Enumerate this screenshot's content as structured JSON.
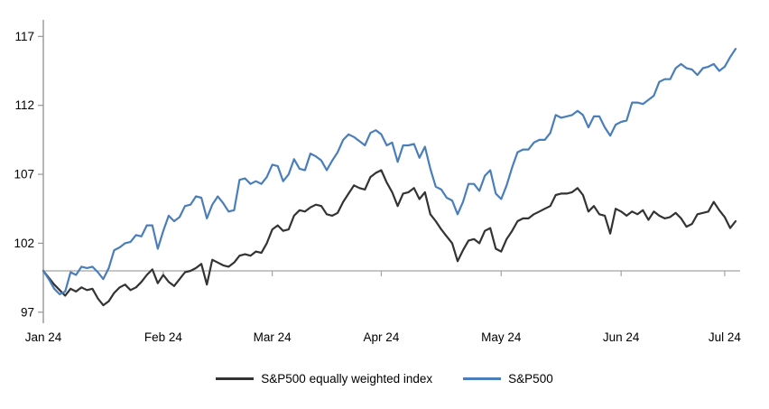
{
  "chart_data": {
    "type": "line",
    "title": "",
    "xlabel": "",
    "ylabel": "",
    "x_tick_labels": [
      "Jan 24",
      "Feb 24",
      "Mar 24",
      "Apr 24",
      "May 24",
      "Jun 24",
      "Jul 24"
    ],
    "x_tick_indices": [
      0,
      22,
      42,
      62,
      84,
      106,
      125
    ],
    "y_ticks": [
      97,
      102,
      107,
      112,
      117
    ],
    "ylim": [
      96.2,
      118.2
    ],
    "baseline_value": 100,
    "grid": "none",
    "legend_position": "bottom",
    "axis_color": "#979797",
    "baseline_color": "#a3a3a3",
    "text_color": "#000000",
    "background_color": "#ffffff",
    "series": [
      {
        "name": "S&P500 equally weighted index",
        "color": "#333333",
        "values": [
          100.0,
          99.5,
          99.0,
          98.6,
          98.2,
          98.7,
          98.5,
          98.8,
          98.6,
          98.7,
          98.0,
          97.5,
          97.8,
          98.4,
          98.8,
          99.0,
          98.6,
          98.8,
          99.2,
          99.7,
          100.1,
          99.1,
          99.7,
          99.2,
          98.9,
          99.4,
          99.9,
          100.0,
          100.2,
          100.5,
          99.0,
          100.8,
          100.6,
          100.4,
          100.3,
          100.6,
          101.1,
          101.2,
          101.1,
          101.4,
          101.3,
          102.0,
          103.0,
          103.3,
          102.9,
          103.0,
          104.0,
          104.4,
          104.3,
          104.6,
          104.8,
          104.7,
          104.1,
          104.0,
          104.2,
          105.0,
          105.6,
          106.2,
          106.0,
          105.9,
          106.8,
          107.1,
          107.3,
          106.4,
          105.7,
          104.7,
          105.6,
          105.7,
          106.0,
          105.2,
          105.7,
          104.1,
          103.6,
          103.0,
          102.5,
          102.0,
          100.7,
          101.5,
          102.2,
          102.3,
          102.0,
          102.9,
          103.1,
          101.6,
          101.4,
          102.3,
          102.9,
          103.6,
          103.8,
          103.8,
          104.1,
          104.3,
          104.5,
          104.7,
          105.5,
          105.6,
          105.6,
          105.7,
          106.0,
          105.5,
          104.3,
          104.7,
          104.1,
          104.0,
          102.7,
          104.5,
          104.3,
          104.0,
          104.3,
          104.1,
          104.4,
          103.7,
          104.3,
          104.0,
          103.8,
          103.9,
          104.2,
          103.8,
          103.2,
          103.4,
          104.1,
          104.2,
          104.3,
          105.0,
          104.4,
          103.9,
          103.1,
          103.6
        ]
      },
      {
        "name": "S&P500",
        "color": "#4a7ebb",
        "values": [
          100.0,
          99.4,
          98.7,
          98.3,
          98.5,
          99.9,
          99.7,
          100.3,
          100.2,
          100.3,
          99.9,
          99.4,
          100.2,
          101.5,
          101.7,
          102.0,
          102.1,
          102.6,
          102.5,
          103.3,
          103.3,
          101.6,
          102.9,
          104.0,
          103.6,
          103.9,
          104.7,
          104.8,
          105.4,
          105.3,
          103.8,
          104.8,
          105.4,
          104.9,
          104.3,
          104.4,
          106.6,
          106.7,
          106.3,
          106.5,
          106.3,
          106.8,
          107.7,
          107.6,
          106.5,
          107.0,
          108.1,
          107.4,
          107.3,
          108.5,
          108.3,
          108.0,
          107.3,
          108.0,
          108.6,
          109.5,
          109.9,
          109.7,
          109.4,
          109.1,
          110.0,
          110.2,
          109.9,
          109.1,
          109.3,
          107.9,
          109.1,
          109.1,
          109.2,
          108.2,
          109.0,
          107.4,
          106.1,
          105.9,
          105.3,
          105.1,
          104.1,
          105.0,
          106.3,
          106.3,
          105.8,
          106.9,
          107.3,
          105.6,
          105.2,
          106.2,
          107.5,
          108.6,
          108.8,
          108.8,
          109.3,
          109.5,
          109.5,
          110.0,
          111.3,
          111.1,
          111.2,
          111.3,
          111.6,
          111.3,
          110.4,
          111.2,
          111.2,
          110.4,
          109.8,
          110.6,
          110.8,
          110.9,
          112.2,
          112.2,
          112.1,
          112.4,
          112.7,
          113.7,
          113.9,
          113.9,
          114.7,
          115.0,
          114.7,
          114.6,
          114.2,
          114.7,
          114.8,
          115.0,
          114.5,
          114.8,
          115.5,
          116.1
        ]
      }
    ]
  },
  "legend": {
    "item1": "S&P500 equally weighted index",
    "item2": "S&P500"
  }
}
